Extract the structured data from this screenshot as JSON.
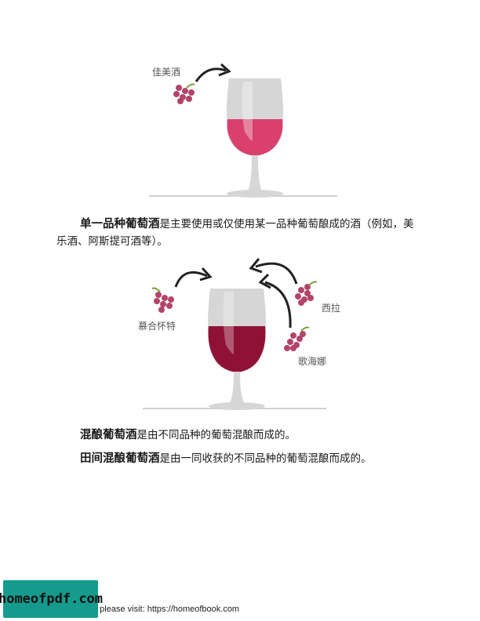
{
  "figure1": {
    "grape_label": "佳美酒"
  },
  "para1": {
    "term": "单一品种葡萄酒",
    "text": "是主要使用或仅使用某一品种葡萄酿成的酒（例如，美乐酒、阿斯提可酒等）。"
  },
  "figure2": {
    "label_left": "慕合怀特",
    "label_top_right": "西拉",
    "label_bottom_right": "歌海娜"
  },
  "para2": {
    "term": "混酿葡萄酒",
    "text": "是由不同品种的葡萄混酿而成的。"
  },
  "para3": {
    "term": "田间混酿葡萄酒",
    "text": "是由一同收获的不同品种的葡萄混酿而成的。"
  },
  "footer": {
    "text": "e please visit: https://homeofbook.com",
    "badge": "homeofpdf.com"
  },
  "colors": {
    "wine_light": "#d9416c",
    "wine_dark": "#8f1236",
    "grape": "#b2446b",
    "glass": "#cfcfcf"
  }
}
